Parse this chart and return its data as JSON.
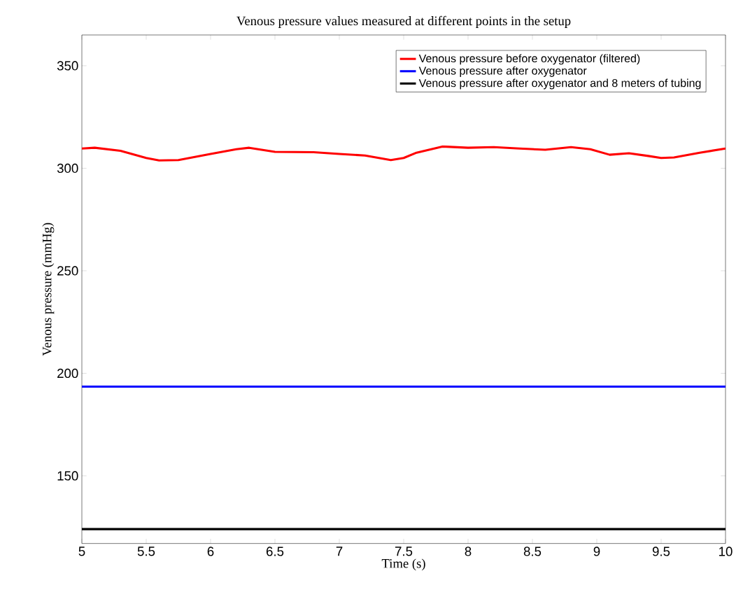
{
  "chart_data": {
    "type": "line",
    "title": "Venous pressure values measured at different points in the setup",
    "xlabel": "Time (s)",
    "ylabel": "Venous pressure (mmHg)",
    "series": [
      {
        "name": "Venous pressure before oxygenator (filtered)",
        "color": "#ff0000",
        "x": [
          5,
          5.1,
          5.3,
          5.5,
          5.6,
          5.75,
          6,
          6.2,
          6.3,
          6.5,
          6.8,
          7,
          7.2,
          7.4,
          7.5,
          7.6,
          7.8,
          8,
          8.2,
          8.4,
          8.6,
          8.8,
          8.95,
          9.1,
          9.25,
          9.4,
          9.5,
          9.6,
          9.8,
          10
        ],
        "values": [
          309.6,
          310,
          308.5,
          305,
          303.8,
          304,
          307,
          309.3,
          310,
          308,
          307.8,
          307,
          306.2,
          304,
          305,
          307.6,
          310.6,
          310,
          310.3,
          309.6,
          309,
          310.3,
          309.3,
          306.6,
          307.3,
          306,
          305,
          305.3,
          307.6,
          309.6
        ]
      },
      {
        "name": "Venous pressure after oxygenator",
        "color": "#0000ff",
        "x": [
          5,
          6,
          7,
          8,
          9,
          10
        ],
        "values": [
          193.5,
          193.5,
          193.5,
          193.5,
          193.5,
          193.5
        ]
      },
      {
        "name": "Venous pressure after oxygenator and 8 meters of tubing",
        "color": "#000000",
        "x": [
          5,
          6,
          7,
          8,
          9,
          10
        ],
        "values": [
          124,
          124,
          124,
          124,
          124,
          124
        ]
      }
    ],
    "xlim": [
      5,
      10
    ],
    "ylim": [
      117,
      365
    ],
    "xticks": [
      5,
      5.5,
      6,
      6.5,
      7,
      7.5,
      8,
      8.5,
      9,
      9.5,
      10
    ],
    "yticks": [
      150,
      200,
      250,
      300,
      350
    ],
    "legend": "top right",
    "grid": false,
    "marker": "none",
    "line_style": "solid"
  }
}
